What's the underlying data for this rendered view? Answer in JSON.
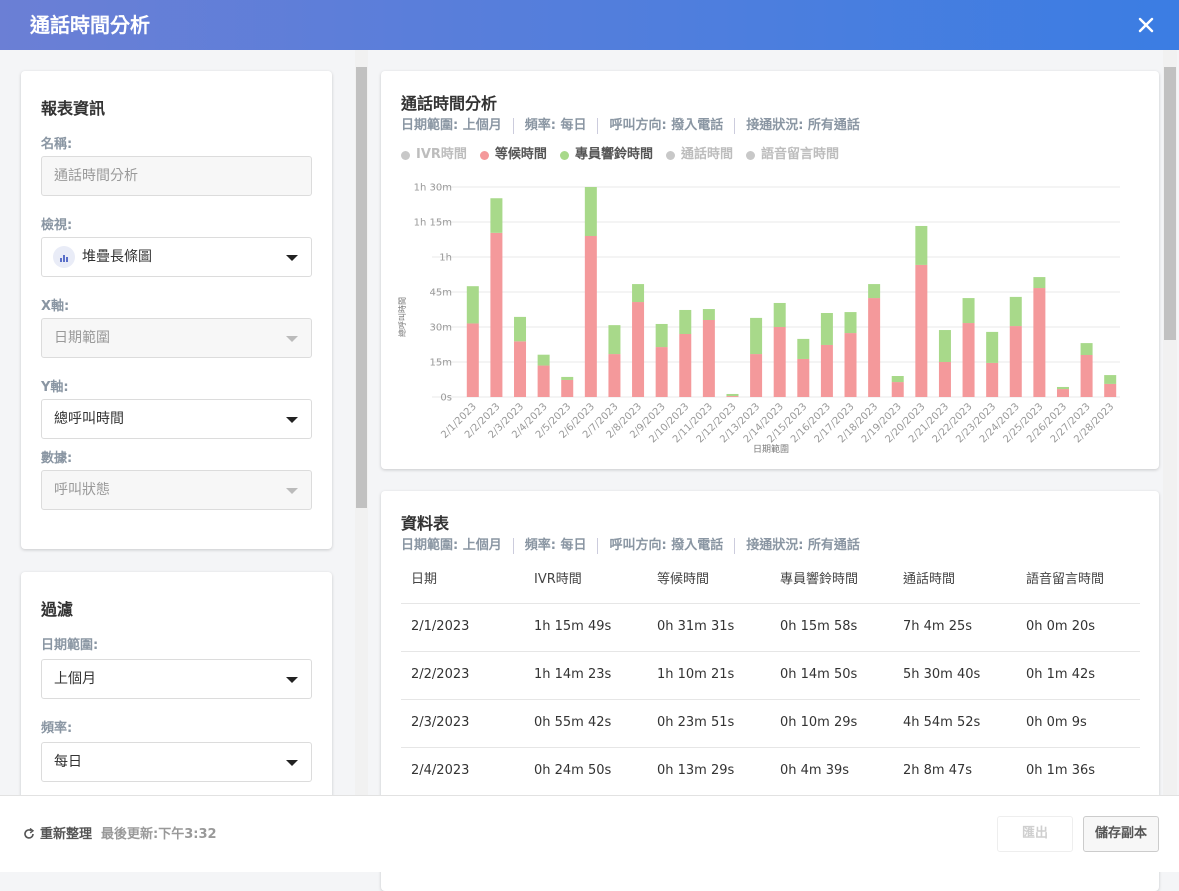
{
  "header": {
    "title": "通話時間分析"
  },
  "report_info": {
    "title": "報表資訊",
    "fields": [
      {
        "label": "名稱:",
        "value": "通話時間分析",
        "disabled": true,
        "dropdown": false
      },
      {
        "label": "檢視:",
        "value": "堆疊長條圖",
        "disabled": false,
        "dropdown": true,
        "icon": "bar-chart"
      },
      {
        "label": "X軸:",
        "value": "日期範圍",
        "disabled": true,
        "dropdown": true
      },
      {
        "label": "Y軸:",
        "value": "總呼叫時間",
        "disabled": false,
        "dropdown": true
      },
      {
        "label": "數據:",
        "value": "呼叫狀態",
        "disabled": true,
        "dropdown": true
      }
    ]
  },
  "filter": {
    "title": "過濾",
    "fields": [
      {
        "label": "日期範圍:",
        "value": "上個月",
        "disabled": false,
        "dropdown": true
      },
      {
        "label": "頻率:",
        "value": "每日",
        "disabled": false,
        "dropdown": true
      }
    ]
  },
  "chart_data": {
    "type": "bar",
    "stacked": true,
    "grid": true,
    "title": "通話時間分析",
    "filters": [
      "日期範圍: 上個月",
      "頻率: 每日",
      "呼叫方向: 撥入電話",
      "接通狀況: 所有通話"
    ],
    "y_label": "總呼叫時間",
    "x_label": "日期範圍",
    "categories": [
      "2/1/2023",
      "2/2/2023",
      "2/3/2023",
      "2/4/2023",
      "2/5/2023",
      "2/6/2023",
      "2/7/2023",
      "2/8/2023",
      "2/9/2023",
      "2/10/2023",
      "2/11/2023",
      "2/12/2023",
      "2/13/2023",
      "2/14/2023",
      "2/15/2023",
      "2/16/2023",
      "2/17/2023",
      "2/18/2023",
      "2/19/2023",
      "2/20/2023",
      "2/21/2023",
      "2/22/2023",
      "2/23/2023",
      "2/24/2023",
      "2/25/2023",
      "2/26/2023",
      "2/27/2023",
      "2/28/2023"
    ],
    "series": [
      {
        "name": "IVR時間",
        "color": "#c8c8c8",
        "hidden": true
      },
      {
        "name": "等候時間",
        "color": "#f4999b",
        "hidden": false,
        "values": [
          31.52,
          70.35,
          23.85,
          13.48,
          7.3,
          69,
          18.4,
          40.7,
          21.4,
          27,
          33,
          0.4,
          18.4,
          30,
          16.3,
          22.3,
          27.4,
          42.4,
          6.4,
          56.6,
          15,
          31.7,
          14.6,
          30.4,
          46.7,
          3.4,
          18,
          5.6
        ]
      },
      {
        "name": "專員響鈴時間",
        "color": "#a8d98a",
        "hidden": false,
        "values": [
          15.97,
          14.83,
          10.48,
          4.65,
          1.3,
          21,
          12.4,
          7.7,
          9.9,
          10.3,
          4.7,
          0.9,
          15.5,
          10.3,
          8.6,
          13.7,
          9,
          6,
          2.6,
          16.7,
          13.7,
          10.7,
          13.3,
          12.5,
          4.7,
          0.9,
          5.1,
          3.8
        ]
      },
      {
        "name": "通話時間",
        "color": "#c8c8c8",
        "hidden": true
      },
      {
        "name": "語音留言時間",
        "color": "#c8c8c8",
        "hidden": true
      }
    ],
    "ylim": [
      0,
      90
    ],
    "yticks": [
      {
        "value": 0,
        "label": "0s"
      },
      {
        "value": 15,
        "label": "15m"
      },
      {
        "value": 30,
        "label": "30m"
      },
      {
        "value": 45,
        "label": "45m"
      },
      {
        "value": 60,
        "label": "1h"
      },
      {
        "value": 75,
        "label": "1h 15m"
      },
      {
        "value": 90,
        "label": "1h 30m"
      }
    ]
  },
  "table": {
    "title": "資料表",
    "filters": [
      "日期範圍: 上個月",
      "頻率: 每日",
      "呼叫方向: 撥入電話",
      "接通狀況: 所有通話"
    ],
    "headers": [
      "日期",
      "IVR時間",
      "等候時間",
      "專員響鈴時間",
      "通話時間",
      "語音留言時間"
    ],
    "rows": [
      [
        "2/1/2023",
        "1h 15m 49s",
        "0h 31m 31s",
        "0h 15m 58s",
        "7h 4m 25s",
        "0h 0m 20s"
      ],
      [
        "2/2/2023",
        "1h 14m 23s",
        "1h 10m 21s",
        "0h 14m 50s",
        "5h 30m 40s",
        "0h 1m 42s"
      ],
      [
        "2/3/2023",
        "0h 55m 42s",
        "0h 23m 51s",
        "0h 10m 29s",
        "4h 54m 52s",
        "0h 0m 9s"
      ],
      [
        "2/4/2023",
        "0h 24m 50s",
        "0h 13m 29s",
        "0h 4m 39s",
        "2h 8m 47s",
        "0h 1m 36s"
      ]
    ]
  },
  "footer": {
    "refresh": "重新整理",
    "last_updated": "最後更新:下午3:32",
    "buttons": [
      {
        "label": "匯出",
        "disabled": true
      },
      {
        "label": "儲存副本",
        "disabled": false
      }
    ]
  }
}
